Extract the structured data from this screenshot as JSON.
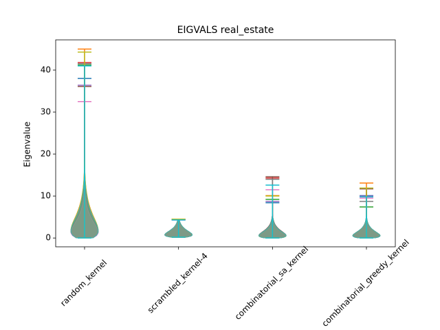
{
  "chart_data": {
    "type": "violin",
    "title": "EIGVALS real_estate",
    "y_label": "Eigenvalue",
    "categories": [
      "random_kernel",
      "scrambled_kernel-4",
      "combinatorial_sa_kernel",
      "combinatorial_greedy_kernel"
    ],
    "ylim": [
      -2.1,
      47.2
    ],
    "yticks": [
      0,
      10,
      20,
      30,
      40
    ],
    "series": [
      {
        "color": "#1f77b4",
        "min": [
          0,
          0.2,
          0,
          0
        ],
        "max": [
          38.0,
          4.3,
          8.4,
          10.1
        ]
      },
      {
        "color": "#ff7f0e",
        "min": [
          0,
          0.2,
          0,
          0
        ],
        "max": [
          45.0,
          4.5,
          10.1,
          13.1
        ]
      },
      {
        "color": "#2ca02c",
        "min": [
          0,
          0.2,
          0,
          0
        ],
        "max": [
          41.2,
          4.4,
          9.2,
          7.4
        ]
      },
      {
        "color": "#d62728",
        "min": [
          0,
          0.2,
          0,
          0
        ],
        "max": [
          41.8,
          4.4,
          14.3,
          11.8
        ]
      },
      {
        "color": "#9467bd",
        "min": [
          0,
          0.2,
          0,
          0
        ],
        "max": [
          36.4,
          4.3,
          8.7,
          10.0
        ]
      },
      {
        "color": "#8c564b",
        "min": [
          0,
          0.2,
          0,
          0
        ],
        "max": [
          36.1,
          4.4,
          14.6,
          11.7
        ]
      },
      {
        "color": "#e377c2",
        "min": [
          0,
          0.2,
          0,
          0
        ],
        "max": [
          32.5,
          4.3,
          11.5,
          9.5
        ]
      },
      {
        "color": "#7f7f7f",
        "min": [
          0,
          0.2,
          0,
          0
        ],
        "max": [
          41.5,
          4.4,
          14.0,
          8.7
        ]
      },
      {
        "color": "#bcbd22",
        "min": [
          0,
          0.2,
          0,
          0
        ],
        "max": [
          44.3,
          4.5,
          10.0,
          11.9
        ]
      },
      {
        "color": "#17becf",
        "min": [
          0,
          0.2,
          0,
          0
        ],
        "max": [
          41.0,
          4.3,
          12.6,
          9.8
        ]
      }
    ]
  }
}
